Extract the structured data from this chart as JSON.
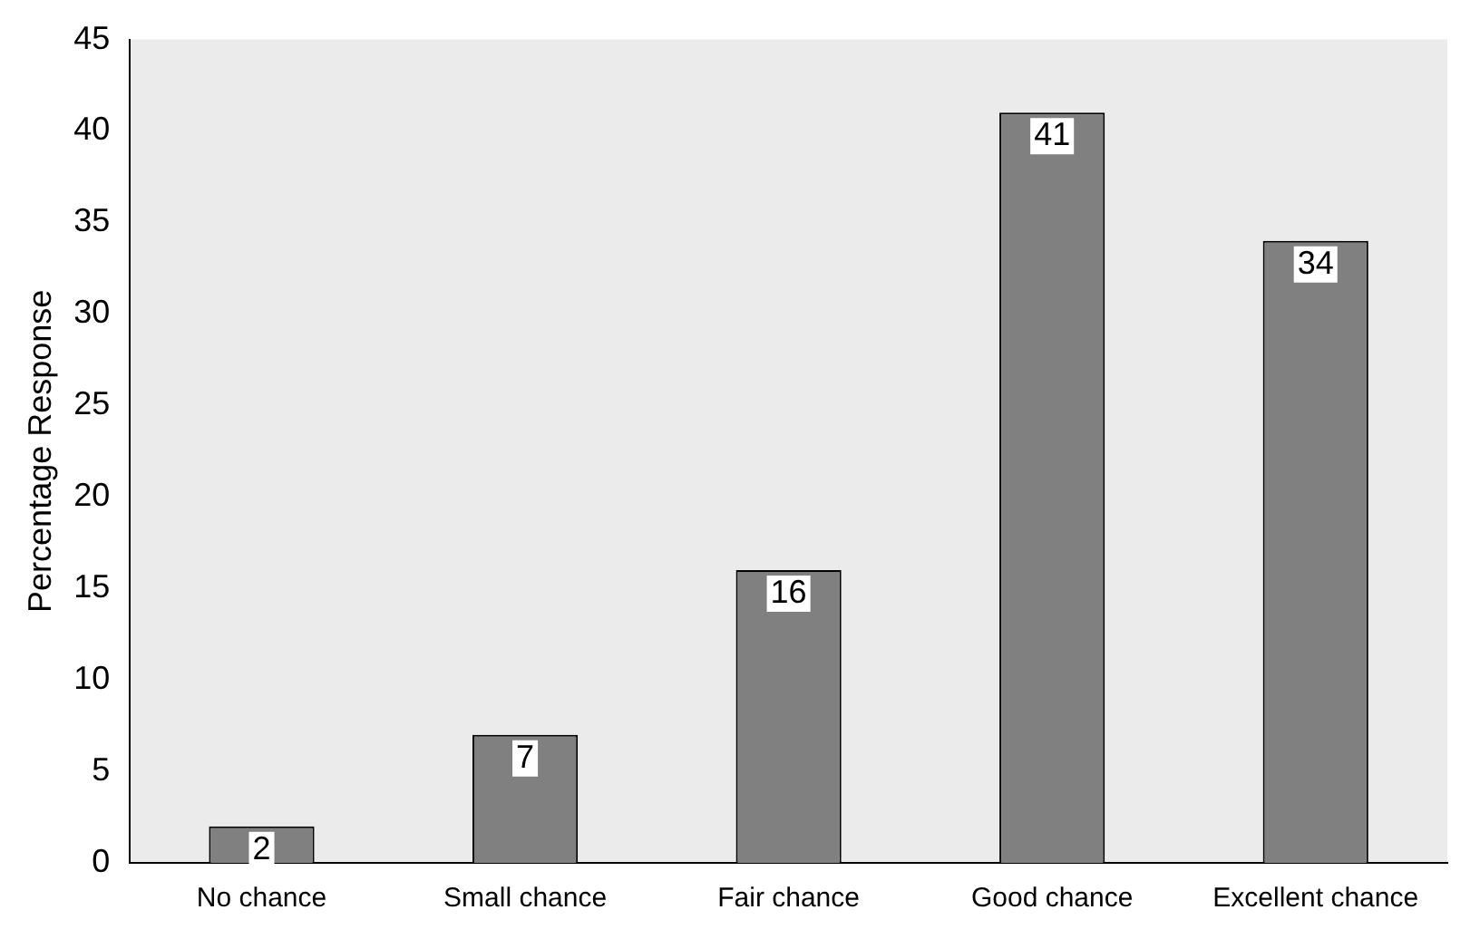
{
  "chart_data": {
    "type": "bar",
    "ylabel": "Percentage Response",
    "categories": [
      "No chance",
      "Small chance",
      "Fair chance",
      "Good chance",
      "Excellent chance"
    ],
    "values": [
      2,
      7,
      16,
      41,
      34
    ],
    "color": "#808080",
    "ylim": [
      0,
      45
    ],
    "yticks": [
      0,
      5,
      10,
      15,
      20,
      25,
      30,
      35,
      40,
      45
    ],
    "grid": false,
    "legend": false,
    "data_labels": true
  }
}
